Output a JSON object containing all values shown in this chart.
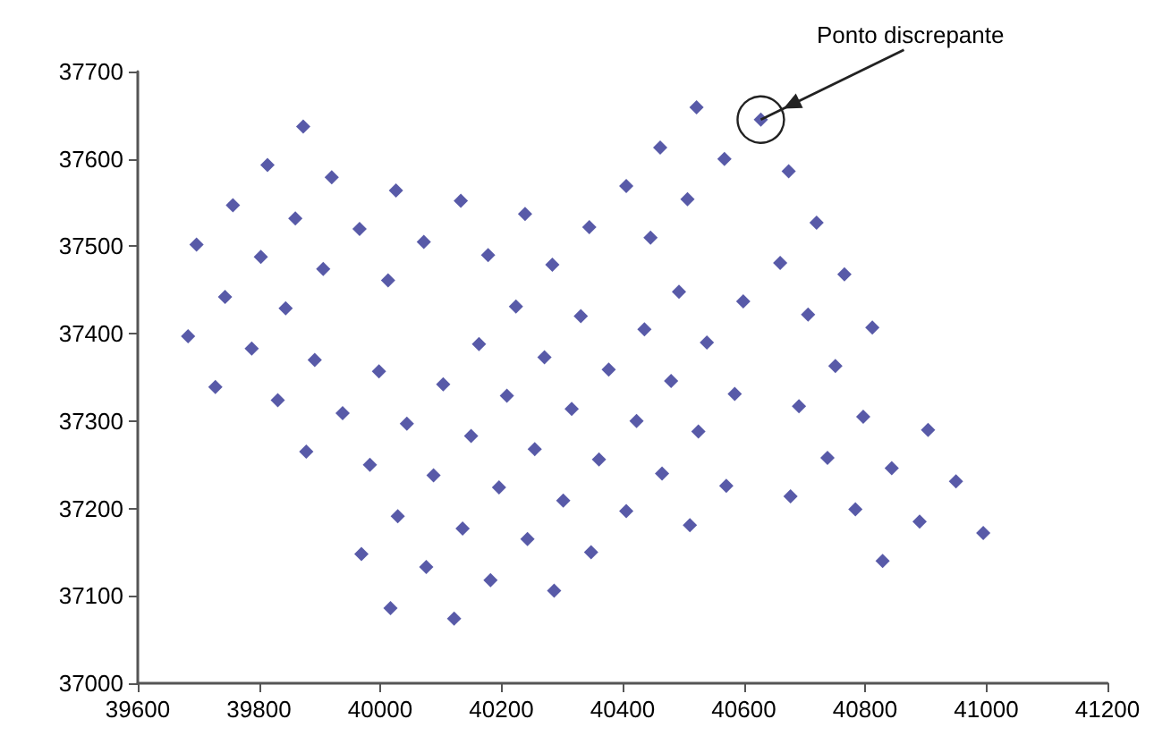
{
  "chart_data": {
    "type": "scatter",
    "color": "#2e3192",
    "marker": "diamond",
    "grid": false,
    "xlim": [
      39600,
      41200
    ],
    "xticks": [
      39600,
      39800,
      40000,
      40200,
      40400,
      40600,
      40800,
      41000,
      41200
    ],
    "ylim": [
      37000,
      37700
    ],
    "yticks": [
      37000,
      37100,
      37200,
      37300,
      37400,
      37500,
      37600,
      37700
    ],
    "x": [
      39873,
      39814,
      39920,
      40026,
      40133,
      40239,
      40345,
      40406,
      39757,
      39860,
      39966,
      40072,
      40178,
      40284,
      39697,
      39803,
      39906,
      40013,
      39744,
      39844,
      40224,
      40331,
      39683,
      39788,
      39892,
      39998,
      40163,
      40271,
      40377,
      40522,
      40628,
      40462,
      40568,
      40674,
      40507,
      40720,
      40446,
      40660,
      40766,
      40493,
      40599,
      40706,
      40812,
      40436,
      40539,
      40751,
      39728,
      39831,
      39938,
      40044,
      40104,
      40209,
      40316,
      39878,
      39983,
      40088,
      40150,
      40255,
      40361,
      40029,
      40136,
      40196,
      40302,
      40406,
      39969,
      40076,
      40182,
      40243,
      40348,
      40287,
      40017,
      40122,
      40480,
      40585,
      40691,
      40797,
      40904,
      40423,
      40525,
      40738,
      40844,
      40950,
      40465,
      40571,
      40677,
      40784,
      40890,
      40995,
      40511,
      40829
    ],
    "values": [
      37637,
      37593,
      37579,
      37564,
      37552,
      37537,
      37522,
      37569,
      37547,
      37532,
      37520,
      37505,
      37490,
      37479,
      37502,
      37488,
      37474,
      37461,
      37442,
      37429,
      37431,
      37420,
      37397,
      37383,
      37370,
      37357,
      37388,
      37373,
      37359,
      37659,
      37645,
      37613,
      37600,
      37586,
      37554,
      37527,
      37510,
      37481,
      37468,
      37448,
      37437,
      37422,
      37407,
      37405,
      37390,
      37363,
      37339,
      37324,
      37309,
      37297,
      37342,
      37329,
      37314,
      37265,
      37250,
      37238,
      37283,
      37268,
      37256,
      37191,
      37177,
      37224,
      37209,
      37197,
      37148,
      37133,
      37118,
      37165,
      37150,
      37106,
      37086,
      37074,
      37346,
      37331,
      37317,
      37305,
      37290,
      37300,
      37288,
      37258,
      37246,
      37231,
      37240,
      37226,
      37214,
      37199,
      37185,
      37172,
      37181,
      37140
    ],
    "annotations": [
      {
        "text": "Ponto discrepante",
        "x": 40628,
        "y": 37645
      }
    ]
  }
}
